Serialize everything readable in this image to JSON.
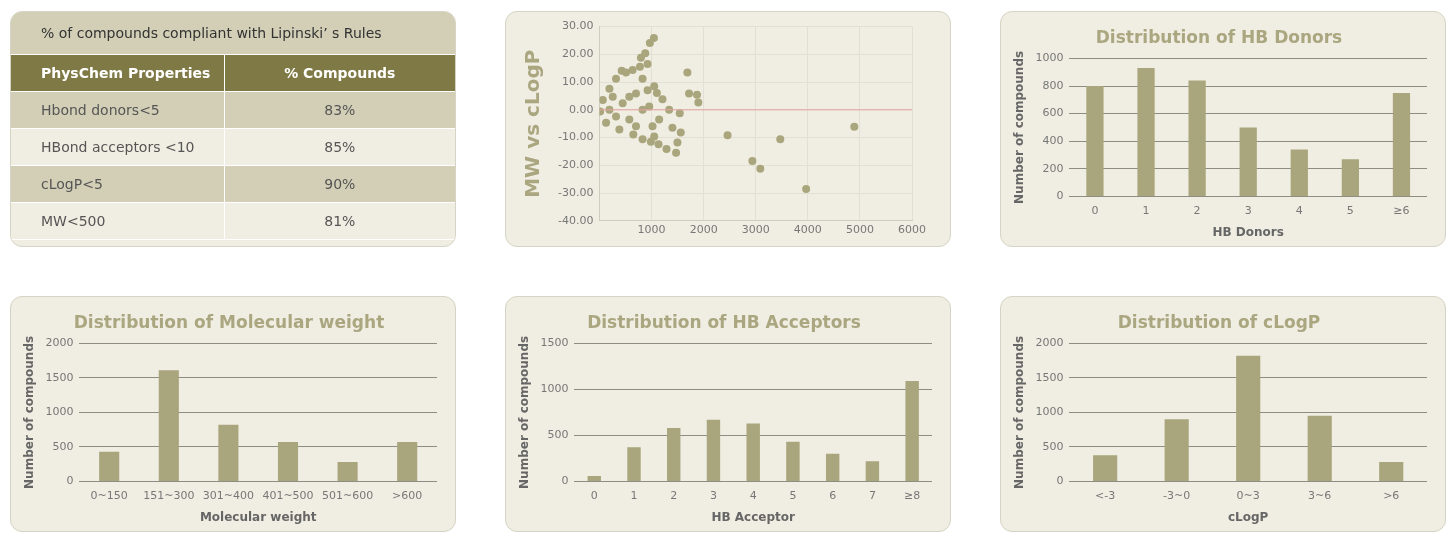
{
  "chart_data": [
    {
      "type": "other",
      "title": "% of compounds compliant with Lipinski’ s Rules",
      "annotations": [
        "PhysChem Properties",
        "% Compounds"
      ],
      "categories": [
        "Hbond donors<5",
        "HBond acceptors <10",
        "cLogP<5",
        "MW<500"
      ],
      "value_labels": [
        "83%",
        "85%",
        "90%",
        "81%"
      ]
    },
    {
      "type": "scatter",
      "ylabel": "MW vs cLogP",
      "x": [
        1045,
        968,
        879,
        796,
        924,
        777,
        427,
        637,
        1051,
        1102,
        1210,
        1688,
        1720,
        1873,
        1898,
        2459,
        2936,
        3089,
        3471,
        3968,
        4892,
        1497,
        1471,
        1287,
        1134,
        1561,
        1051,
        987,
        828,
        650,
        1338,
        1541,
        1401,
        382,
        127,
        13,
        64,
        191,
        318,
        510,
        828,
        924,
        955,
        573,
        191,
        446,
        701,
        828,
        318,
        1146,
        1019,
        701,
        573,
        255
      ],
      "series": [
        {
          "color": "#a9a57c",
          "values": [
            25.9,
            24.1,
            20.4,
            18.8,
            16.5,
            15.5,
            14.1,
            14.4,
            8.5,
            6.1,
            3.8,
            13.5,
            5.9,
            5.4,
            2.6,
            -9.2,
            -18.4,
            -21.2,
            -10.6,
            -28.5,
            -6.1,
            -11.8,
            -15.5,
            -14.1,
            -12.4,
            -8.2,
            -9.6,
            -11.5,
            -10.6,
            -8.9,
            0,
            -1.2,
            -6.5,
            -7.1,
            -4.7,
            -0.6,
            3.5,
            7.6,
            11.2,
            13.5,
            11.2,
            7.1,
            1.2,
            -3.5,
            0,
            2.4,
            5.9,
            0,
            -2.4,
            -3.5,
            -5.9,
            -5.9,
            4.7,
            4.7
          ]
        }
      ],
      "xlim": [
        0,
        6000
      ],
      "xticks": [
        {
          "value": 0,
          "label": null
        },
        1000,
        2000,
        3000,
        4000,
        5000,
        6000
      ],
      "ylim": [
        -40,
        30
      ],
      "yticks": [
        {
          "value": -40,
          "label": "-40.00"
        },
        {
          "value": -30,
          "label": "-30.00"
        },
        {
          "value": -20,
          "label": "-20.00"
        },
        {
          "value": -10,
          "label": "-10.00"
        },
        {
          "value": 0,
          "label": "0.00"
        },
        {
          "value": 10,
          "label": "10.00"
        },
        {
          "value": 20,
          "label": "20.00"
        },
        {
          "value": 30,
          "label": "30.00"
        }
      ],
      "grid": true,
      "marker": "circle",
      "ref_lines": [
        {
          "axis": "y",
          "value": 0,
          "color": "#e3a3a0"
        }
      ]
    },
    {
      "type": "bar",
      "title": "Distribution of HB Donors",
      "xlabel": "HB Donors",
      "ylabel": "Number of compounds",
      "categories": [
        "0",
        "1",
        "2",
        "3",
        "4",
        "5",
        "≥6"
      ],
      "series": [
        {
          "color": "#a9a57c",
          "values": [
            800,
            930,
            840,
            500,
            340,
            270,
            750
          ]
        }
      ],
      "ylim": [
        0,
        1000
      ],
      "yticks": [
        0,
        200,
        400,
        600,
        800,
        1000
      ],
      "grid": "y"
    },
    {
      "type": "bar",
      "title": "Distribution of Molecular weight",
      "xlabel": "Molecular weight",
      "ylabel": "Number of compounds",
      "categories": [
        "0~150",
        "151~300",
        "301~400",
        "401~500",
        "501~600",
        ">600"
      ],
      "series": [
        {
          "color": "#a9a57c",
          "values": [
            430,
            1610,
            820,
            570,
            280,
            570
          ]
        }
      ],
      "ylim": [
        0,
        2000
      ],
      "yticks": [
        0,
        500,
        1000,
        1500,
        2000
      ],
      "grid": "y"
    },
    {
      "type": "bar",
      "title": "Distribution of HB Acceptors",
      "xlabel": "HB Acceptor",
      "ylabel": "Number of compounds",
      "categories": [
        "0",
        "1",
        "2",
        "3",
        "4",
        "5",
        "6",
        "7",
        "≥8"
      ],
      "series": [
        {
          "color": "#a9a57c",
          "values": [
            60,
            370,
            580,
            670,
            630,
            430,
            300,
            220,
            1090
          ]
        }
      ],
      "ylim": [
        0,
        1500
      ],
      "yticks": [
        0,
        500,
        1000,
        1500
      ],
      "grid": "y"
    },
    {
      "type": "bar",
      "title": "Distribution of cLogP",
      "xlabel": "cLogP",
      "ylabel": "Number of compounds",
      "categories": [
        "<-3",
        "-3~0",
        "0~3",
        "3~6",
        ">6"
      ],
      "series": [
        {
          "color": "#a9a57c",
          "values": [
            380,
            900,
            1820,
            950,
            280
          ]
        }
      ],
      "ylim": [
        0,
        2000
      ],
      "yticks": [
        0,
        500,
        1000,
        1500,
        2000
      ],
      "grid": "y"
    }
  ]
}
